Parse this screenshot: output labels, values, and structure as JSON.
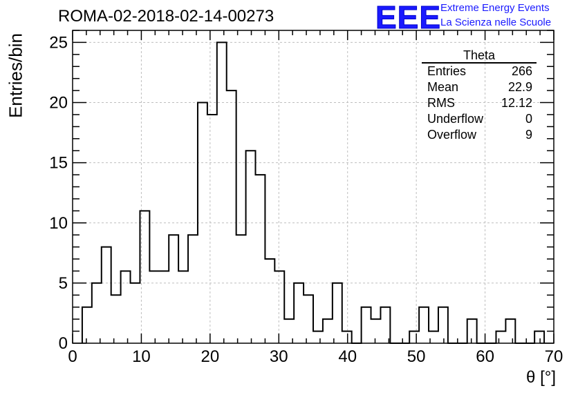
{
  "header": {
    "run_title": "ROMA-02-2018-02-14-00273",
    "logo_text": "EEE",
    "logo_line1": "Extreme Energy Events",
    "logo_line2": "La Scienza nelle Scuole",
    "logo_color": "#1a1aff"
  },
  "stats_box": {
    "title": "Theta",
    "rows": [
      {
        "label": "Entries",
        "value": "266"
      },
      {
        "label": "Mean",
        "value": "22.9"
      },
      {
        "label": "RMS",
        "value": "12.12"
      },
      {
        "label": "Underflow",
        "value": "0"
      },
      {
        "label": "Overflow",
        "value": "9"
      }
    ]
  },
  "chart_data": {
    "type": "bar",
    "style": "step histogram",
    "title": "ROMA-02-2018-02-14-00273",
    "xlabel": "θ [°]",
    "ylabel": "Entries/bin",
    "xlim": [
      0,
      70
    ],
    "ylim": [
      0,
      26
    ],
    "x_ticks": [
      0,
      10,
      20,
      30,
      40,
      50,
      60,
      70
    ],
    "y_ticks": [
      0,
      5,
      10,
      15,
      20,
      25
    ],
    "grid": true,
    "bin_width": 1.4,
    "bin_edges_start": 1.4,
    "values": [
      3,
      5,
      8,
      4,
      6,
      5,
      11,
      6,
      6,
      9,
      6,
      9,
      20,
      19,
      25,
      21,
      9,
      16,
      14,
      7,
      6,
      2,
      5,
      4,
      1,
      2,
      5,
      1,
      0,
      3,
      2,
      3,
      0,
      0,
      1,
      3,
      1,
      3,
      0,
      0,
      2,
      0,
      0,
      1,
      2,
      0,
      0,
      1
    ],
    "line_color": "#000000",
    "grid_color": "#bdbdbd"
  }
}
